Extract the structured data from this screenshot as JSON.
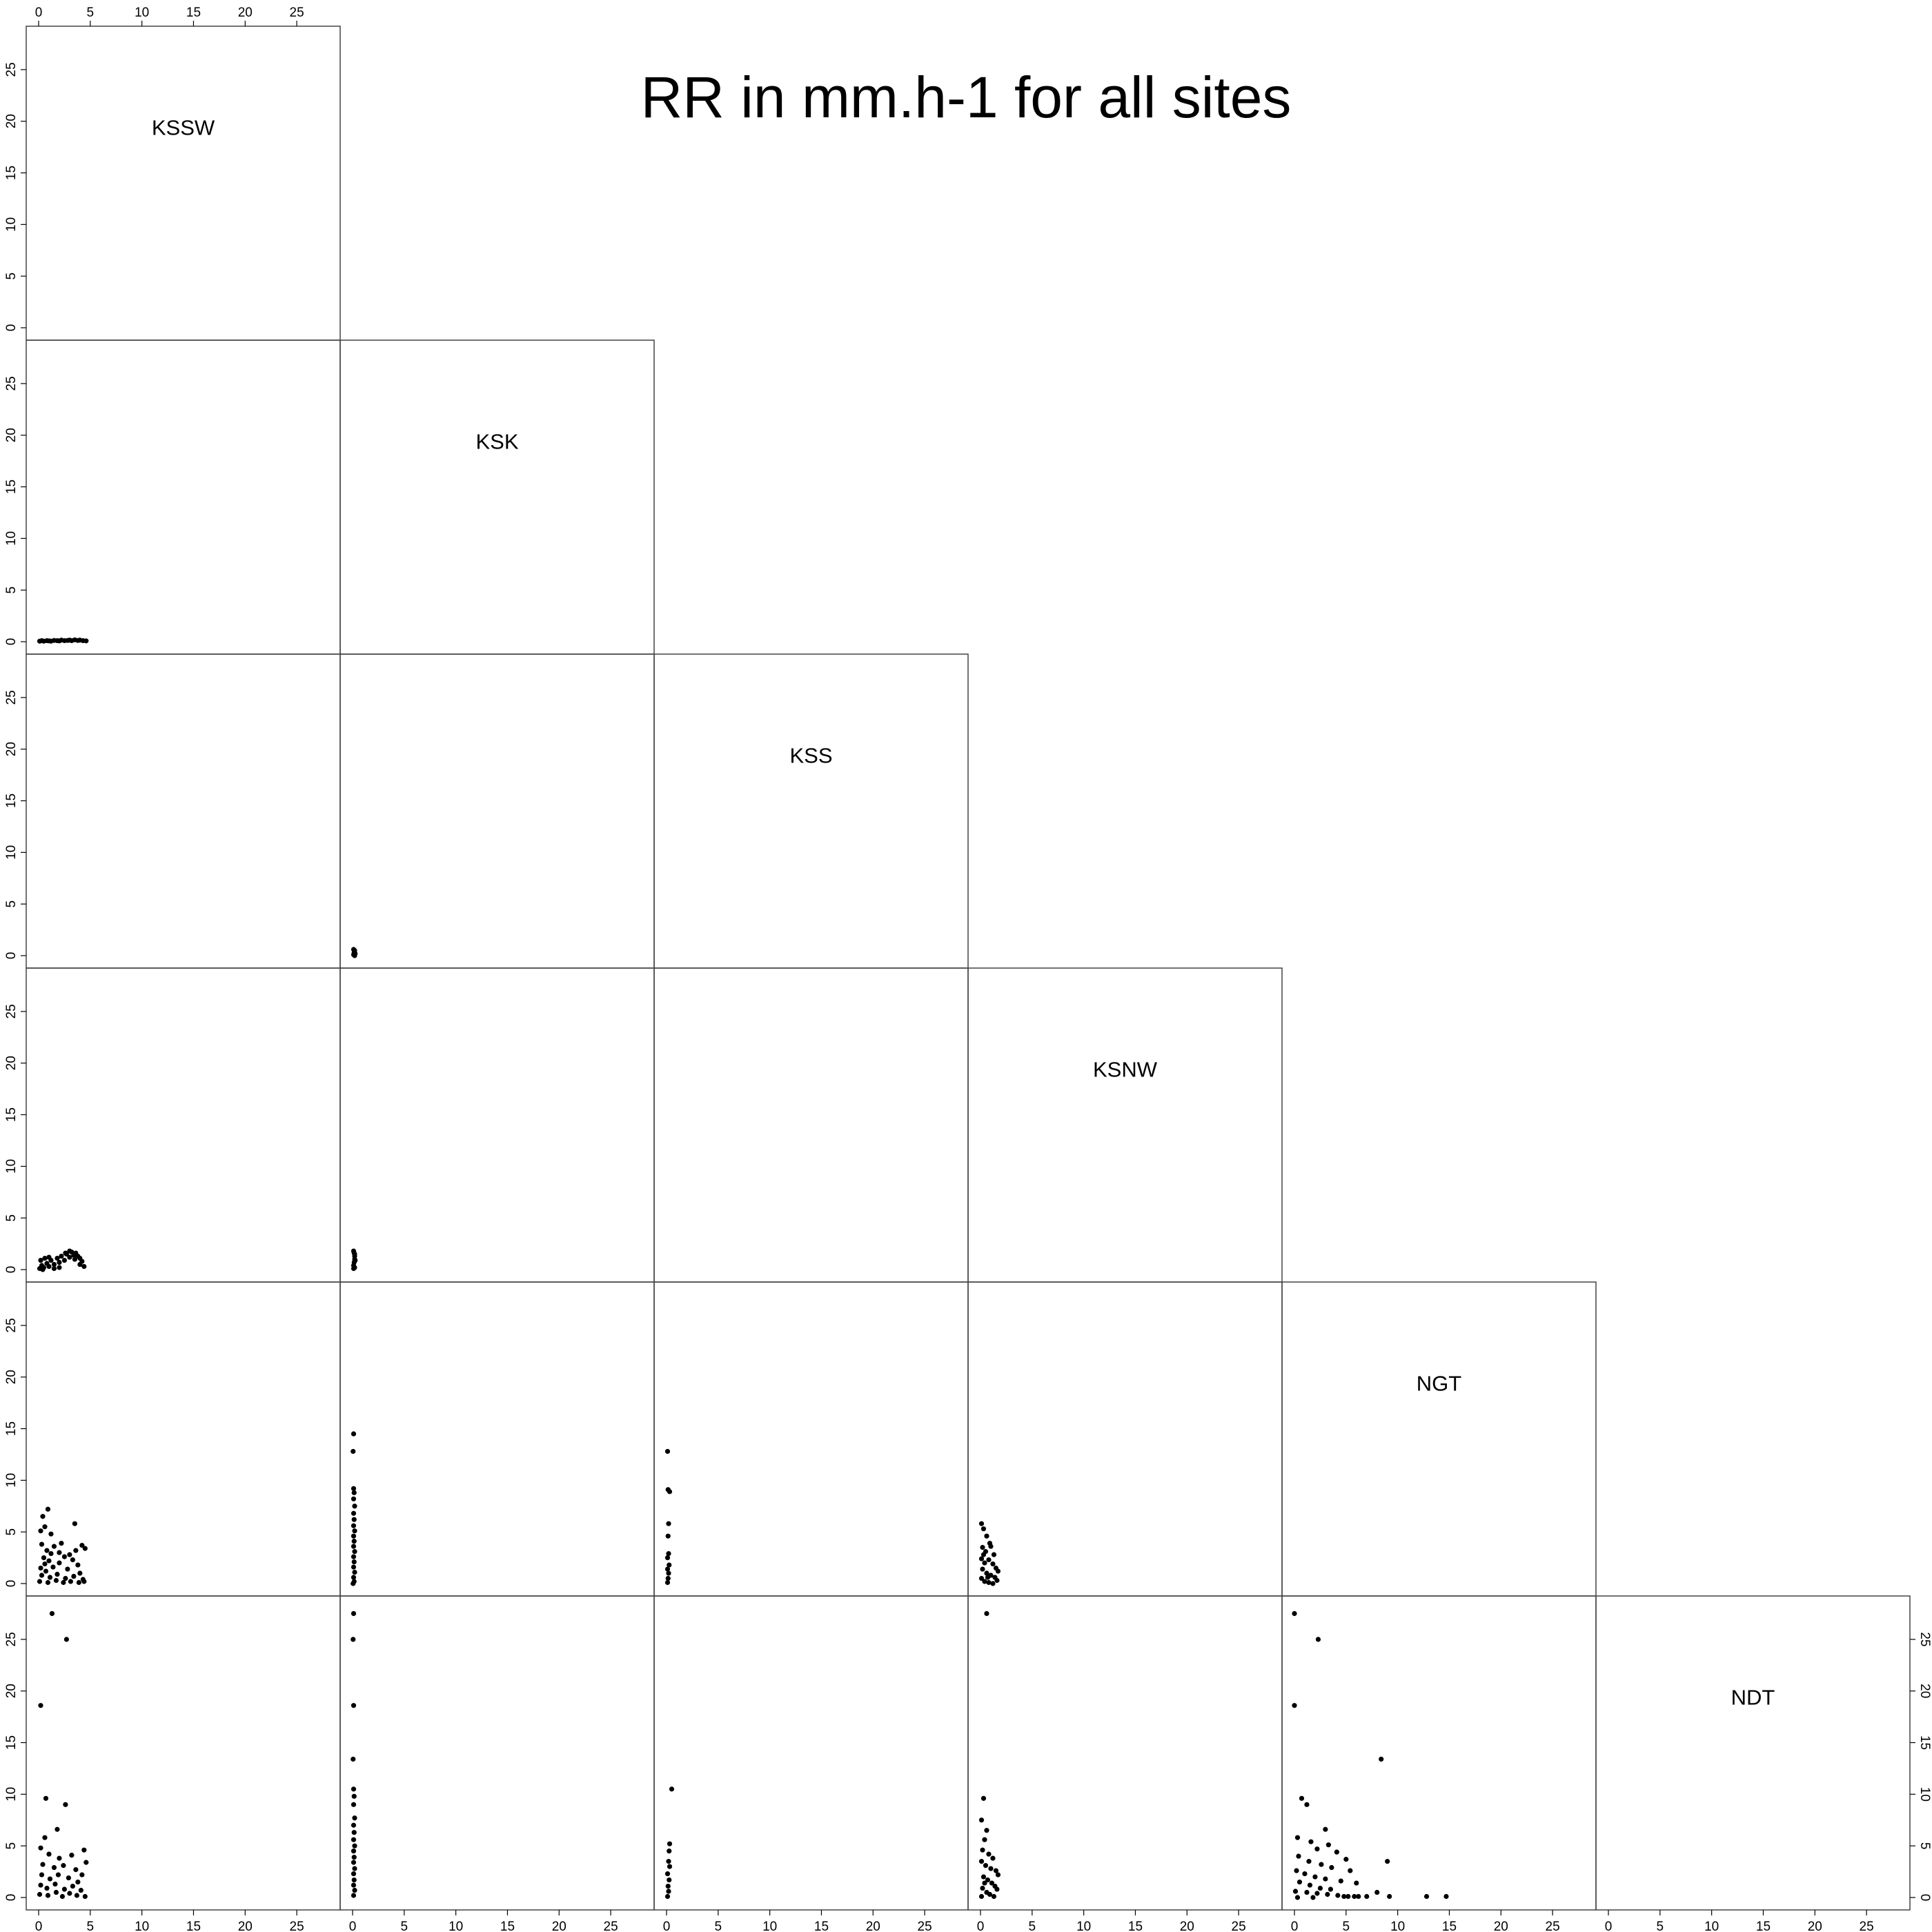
{
  "chart_data": {
    "type": "scatter",
    "title": "RR in mm.h-1 for all sites",
    "variables": [
      "KSSW",
      "KSK",
      "KSS",
      "KSNW",
      "NGT",
      "NDT"
    ],
    "layout": "lower-triangle",
    "xlim": [
      0,
      28
    ],
    "ylim": [
      0,
      28
    ],
    "ticks": [
      0,
      5,
      10,
      15,
      20,
      25
    ],
    "tick_labels": [
      "0",
      "5",
      "10",
      "15",
      "20",
      "25"
    ],
    "axis_labels": {
      "top_of_column": 1,
      "bottom_of_columns": [
        1,
        2,
        3,
        4,
        5,
        6
      ],
      "left_of_rows": [
        1,
        2,
        3,
        4,
        5,
        6
      ],
      "right_of_row": 6
    },
    "panels": [
      {
        "row": 2,
        "col": 1,
        "x_var": "KSSW",
        "y_var": "KSK",
        "points": [
          [
            0.1,
            0.05
          ],
          [
            0.3,
            0.1
          ],
          [
            0.5,
            0.05
          ],
          [
            0.8,
            0.1
          ],
          [
            1.0,
            0.08
          ],
          [
            1.2,
            0.05
          ],
          [
            1.5,
            0.12
          ],
          [
            1.8,
            0.1
          ],
          [
            2.0,
            0.08
          ],
          [
            2.2,
            0.15
          ],
          [
            2.5,
            0.1
          ],
          [
            2.8,
            0.12
          ],
          [
            3.0,
            0.15
          ],
          [
            3.2,
            0.1
          ],
          [
            3.5,
            0.18
          ],
          [
            3.8,
            0.12
          ],
          [
            4.0,
            0.15
          ],
          [
            4.3,
            0.1
          ],
          [
            4.6,
            0.08
          ]
        ]
      },
      {
        "row": 3,
        "col": 2,
        "x_var": "KSK",
        "y_var": "KSS",
        "points": [
          [
            0.1,
            0.1
          ],
          [
            0.15,
            0.3
          ],
          [
            0.2,
            0.5
          ],
          [
            0.25,
            0.2
          ],
          [
            0.1,
            0.6
          ],
          [
            0.2,
            0.0
          ]
        ]
      },
      {
        "row": 4,
        "col": 1,
        "x_var": "KSSW",
        "y_var": "KSNW",
        "points": [
          [
            0.1,
            0.1
          ],
          [
            0.3,
            0.4
          ],
          [
            0.5,
            0.2
          ],
          [
            0.8,
            0.6
          ],
          [
            1.0,
            0.3
          ],
          [
            1.2,
            0.9
          ],
          [
            1.5,
            0.5
          ],
          [
            1.8,
            1.1
          ],
          [
            2.0,
            0.7
          ],
          [
            2.2,
            1.3
          ],
          [
            2.5,
            0.9
          ],
          [
            2.7,
            1.5
          ],
          [
            3.0,
            1.2
          ],
          [
            3.2,
            1.7
          ],
          [
            3.4,
            1.4
          ],
          [
            3.6,
            1.6
          ],
          [
            3.8,
            1.3
          ],
          [
            4.0,
            1.1
          ],
          [
            4.2,
            0.8
          ],
          [
            4.4,
            0.3
          ],
          [
            0.2,
            0.9
          ],
          [
            0.6,
            1.1
          ],
          [
            1.0,
            1.2
          ],
          [
            3.0,
            1.8
          ],
          [
            2.6,
            1.6
          ],
          [
            3.5,
            1.0
          ],
          [
            4.0,
            0.5
          ],
          [
            2.0,
            0.2
          ],
          [
            1.5,
            0.1
          ],
          [
            0.4,
            0.0
          ]
        ]
      },
      {
        "row": 4,
        "col": 2,
        "x_var": "KSK",
        "y_var": "KSNW",
        "points": [
          [
            0.1,
            0.1
          ],
          [
            0.1,
            0.4
          ],
          [
            0.15,
            0.7
          ],
          [
            0.2,
            1.0
          ],
          [
            0.2,
            1.3
          ],
          [
            0.15,
            1.6
          ],
          [
            0.1,
            1.8
          ],
          [
            0.2,
            0.2
          ],
          [
            0.25,
            0.9
          ],
          [
            0.2,
            1.5
          ]
        ]
      },
      {
        "row": 5,
        "col": 1,
        "x_var": "KSSW",
        "y_var": "NGT",
        "points": [
          [
            0.2,
            5.1
          ],
          [
            0.6,
            5.5
          ],
          [
            0.9,
            7.2
          ],
          [
            0.4,
            6.5
          ],
          [
            1.2,
            4.8
          ],
          [
            3.5,
            5.8
          ],
          [
            0.3,
            3.8
          ],
          [
            0.8,
            3.2
          ],
          [
            1.5,
            3.6
          ],
          [
            2.2,
            3.9
          ],
          [
            3.0,
            2.8
          ],
          [
            4.2,
            3.7
          ],
          [
            4.5,
            3.4
          ],
          [
            0.5,
            2.5
          ],
          [
            1.0,
            2.2
          ],
          [
            2.0,
            2.0
          ],
          [
            2.5,
            2.6
          ],
          [
            3.3,
            2.3
          ],
          [
            3.8,
            1.8
          ],
          [
            0.2,
            1.5
          ],
          [
            0.7,
            1.2
          ],
          [
            1.4,
            1.6
          ],
          [
            2.8,
            1.4
          ],
          [
            4.0,
            1.0
          ],
          [
            0.3,
            0.8
          ],
          [
            1.1,
            0.6
          ],
          [
            1.8,
            0.9
          ],
          [
            2.6,
            0.5
          ],
          [
            3.4,
            0.7
          ],
          [
            4.3,
            0.4
          ],
          [
            0.1,
            0.2
          ],
          [
            0.9,
            0.1
          ],
          [
            1.7,
            0.3
          ],
          [
            2.4,
            0.1
          ],
          [
            3.1,
            0.2
          ],
          [
            3.9,
            0.1
          ],
          [
            4.4,
            0.2
          ],
          [
            2.0,
            3.0
          ],
          [
            1.2,
            2.9
          ],
          [
            0.6,
            1.9
          ],
          [
            3.6,
            3.2
          ]
        ]
      },
      {
        "row": 5,
        "col": 2,
        "x_var": "KSK",
        "y_var": "NGT",
        "points": [
          [
            0.1,
            14.5
          ],
          [
            0.05,
            12.8
          ],
          [
            0.1,
            9.2
          ],
          [
            0.15,
            8.8
          ],
          [
            0.1,
            8.2
          ],
          [
            0.2,
            7.5
          ],
          [
            0.1,
            6.8
          ],
          [
            0.15,
            6.2
          ],
          [
            0.1,
            5.6
          ],
          [
            0.2,
            5.1
          ],
          [
            0.1,
            4.6
          ],
          [
            0.15,
            4.1
          ],
          [
            0.1,
            3.6
          ],
          [
            0.2,
            3.1
          ],
          [
            0.1,
            2.6
          ],
          [
            0.15,
            2.1
          ],
          [
            0.1,
            1.6
          ],
          [
            0.2,
            1.1
          ],
          [
            0.1,
            0.6
          ],
          [
            0.15,
            0.2
          ],
          [
            0.05,
            0.0
          ]
        ]
      },
      {
        "row": 5,
        "col": 3,
        "x_var": "KSS",
        "y_var": "NGT",
        "points": [
          [
            0.1,
            12.8
          ],
          [
            0.15,
            9.1
          ],
          [
            0.3,
            8.9
          ],
          [
            0.2,
            5.8
          ],
          [
            0.15,
            4.6
          ],
          [
            0.2,
            2.9
          ],
          [
            0.1,
            2.5
          ],
          [
            0.25,
            1.8
          ],
          [
            0.1,
            1.4
          ],
          [
            0.2,
            1.0
          ],
          [
            0.15,
            0.5
          ],
          [
            0.1,
            0.1
          ]
        ]
      },
      {
        "row": 5,
        "col": 4,
        "x_var": "KSNW",
        "y_var": "NGT",
        "points": [
          [
            0.1,
            5.8
          ],
          [
            0.3,
            5.3
          ],
          [
            0.6,
            4.6
          ],
          [
            0.9,
            3.9
          ],
          [
            0.2,
            3.5
          ],
          [
            0.5,
            3.1
          ],
          [
            1.0,
            3.6
          ],
          [
            1.3,
            2.8
          ],
          [
            0.1,
            2.4
          ],
          [
            0.4,
            2.0
          ],
          [
            0.8,
            2.3
          ],
          [
            1.2,
            1.9
          ],
          [
            1.5,
            1.5
          ],
          [
            1.7,
            1.2
          ],
          [
            0.2,
            1.4
          ],
          [
            0.6,
            1.0
          ],
          [
            1.0,
            0.8
          ],
          [
            1.4,
            0.6
          ],
          [
            1.6,
            0.3
          ],
          [
            0.1,
            0.5
          ],
          [
            0.4,
            0.2
          ],
          [
            0.8,
            0.1
          ],
          [
            1.2,
            0.0
          ],
          [
            0.3,
            2.8
          ],
          [
            0.7,
            0.6
          ]
        ]
      },
      {
        "row": 6,
        "col": 1,
        "x_var": "KSSW",
        "y_var": "NDT",
        "points": [
          [
            1.3,
            27.5
          ],
          [
            2.7,
            25.0
          ],
          [
            0.2,
            18.6
          ],
          [
            0.7,
            9.6
          ],
          [
            2.6,
            9.0
          ],
          [
            1.8,
            6.6
          ],
          [
            0.6,
            5.8
          ],
          [
            0.2,
            4.8
          ],
          [
            1.0,
            4.2
          ],
          [
            2.0,
            3.8
          ],
          [
            3.2,
            4.1
          ],
          [
            4.4,
            4.6
          ],
          [
            4.6,
            3.4
          ],
          [
            0.4,
            3.2
          ],
          [
            1.5,
            2.9
          ],
          [
            2.4,
            3.1
          ],
          [
            3.6,
            2.7
          ],
          [
            4.2,
            2.2
          ],
          [
            0.3,
            2.2
          ],
          [
            1.1,
            1.8
          ],
          [
            1.9,
            2.2
          ],
          [
            2.9,
            1.9
          ],
          [
            3.8,
            1.5
          ],
          [
            0.2,
            1.2
          ],
          [
            0.8,
            0.9
          ],
          [
            1.6,
            1.3
          ],
          [
            2.5,
            0.8
          ],
          [
            3.3,
            1.1
          ],
          [
            4.1,
            0.7
          ],
          [
            0.1,
            0.3
          ],
          [
            0.9,
            0.2
          ],
          [
            1.7,
            0.5
          ],
          [
            2.3,
            0.1
          ],
          [
            3.0,
            0.4
          ],
          [
            3.7,
            0.2
          ],
          [
            4.5,
            0.1
          ]
        ]
      },
      {
        "row": 6,
        "col": 2,
        "x_var": "KSK",
        "y_var": "NDT",
        "points": [
          [
            0.1,
            27.5
          ],
          [
            0.05,
            25.0
          ],
          [
            0.1,
            18.6
          ],
          [
            0.05,
            13.4
          ],
          [
            0.1,
            10.5
          ],
          [
            0.15,
            9.8
          ],
          [
            0.1,
            9.0
          ],
          [
            0.2,
            7.7
          ],
          [
            0.1,
            7.0
          ],
          [
            0.15,
            6.3
          ],
          [
            0.1,
            5.6
          ],
          [
            0.2,
            5.0
          ],
          [
            0.1,
            4.5
          ],
          [
            0.15,
            3.9
          ],
          [
            0.1,
            3.4
          ],
          [
            0.2,
            2.8
          ],
          [
            0.1,
            2.3
          ],
          [
            0.15,
            1.7
          ],
          [
            0.1,
            1.2
          ],
          [
            0.2,
            0.7
          ],
          [
            0.1,
            0.2
          ]
        ]
      },
      {
        "row": 6,
        "col": 3,
        "x_var": "KSS",
        "y_var": "NDT",
        "points": [
          [
            0.5,
            10.5
          ],
          [
            0.3,
            5.2
          ],
          [
            0.25,
            4.5
          ],
          [
            0.2,
            3.5
          ],
          [
            0.3,
            3.0
          ],
          [
            0.1,
            2.3
          ],
          [
            0.25,
            1.7
          ],
          [
            0.15,
            1.1
          ],
          [
            0.2,
            0.6
          ],
          [
            0.1,
            0.1
          ]
        ]
      },
      {
        "row": 6,
        "col": 4,
        "x_var": "KSNW",
        "y_var": "NDT",
        "points": [
          [
            0.6,
            27.5
          ],
          [
            0.3,
            9.6
          ],
          [
            0.1,
            7.5
          ],
          [
            0.6,
            6.5
          ],
          [
            0.4,
            5.6
          ],
          [
            0.2,
            4.6
          ],
          [
            0.8,
            4.2
          ],
          [
            1.2,
            3.8
          ],
          [
            0.1,
            3.5
          ],
          [
            0.5,
            3.1
          ],
          [
            1.0,
            2.8
          ],
          [
            1.5,
            2.6
          ],
          [
            1.7,
            2.2
          ],
          [
            0.3,
            2.0
          ],
          [
            0.7,
            1.7
          ],
          [
            1.1,
            1.4
          ],
          [
            1.4,
            1.1
          ],
          [
            1.6,
            0.8
          ],
          [
            0.2,
            0.9
          ],
          [
            0.6,
            0.5
          ],
          [
            0.9,
            0.3
          ],
          [
            1.3,
            0.1
          ],
          [
            0.1,
            0.1
          ],
          [
            0.4,
            1.4
          ]
        ]
      },
      {
        "row": 6,
        "col": 5,
        "x_var": "NGT",
        "y_var": "NDT",
        "points": [
          [
            0.0,
            27.5
          ],
          [
            2.3,
            25.0
          ],
          [
            0.0,
            18.6
          ],
          [
            8.4,
            13.4
          ],
          [
            0.7,
            9.6
          ],
          [
            1.2,
            9.0
          ],
          [
            3.0,
            6.6
          ],
          [
            0.3,
            5.8
          ],
          [
            1.6,
            5.4
          ],
          [
            3.3,
            5.1
          ],
          [
            2.2,
            4.7
          ],
          [
            4.1,
            4.4
          ],
          [
            0.4,
            4.0
          ],
          [
            5.0,
            3.7
          ],
          [
            9.0,
            3.5
          ],
          [
            1.4,
            3.5
          ],
          [
            2.6,
            3.2
          ],
          [
            3.6,
            2.9
          ],
          [
            5.4,
            2.6
          ],
          [
            0.2,
            2.6
          ],
          [
            1.0,
            2.3
          ],
          [
            2.0,
            2.0
          ],
          [
            3.0,
            1.8
          ],
          [
            4.5,
            1.6
          ],
          [
            6.0,
            1.4
          ],
          [
            0.5,
            1.5
          ],
          [
            1.5,
            1.2
          ],
          [
            2.5,
            0.9
          ],
          [
            3.5,
            0.8
          ],
          [
            0.1,
            0.6
          ],
          [
            1.2,
            0.5
          ],
          [
            2.2,
            0.4
          ],
          [
            3.2,
            0.3
          ],
          [
            4.2,
            0.2
          ],
          [
            5.2,
            0.1
          ],
          [
            6.2,
            0.1
          ],
          [
            8.0,
            0.5
          ],
          [
            9.2,
            0.1
          ],
          [
            12.8,
            0.1
          ],
          [
            14.7,
            0.1
          ],
          [
            4.8,
            0.1
          ],
          [
            5.8,
            0.1
          ],
          [
            7.0,
            0.1
          ],
          [
            0.3,
            0.0
          ],
          [
            1.8,
            0.0
          ]
        ]
      }
    ]
  }
}
